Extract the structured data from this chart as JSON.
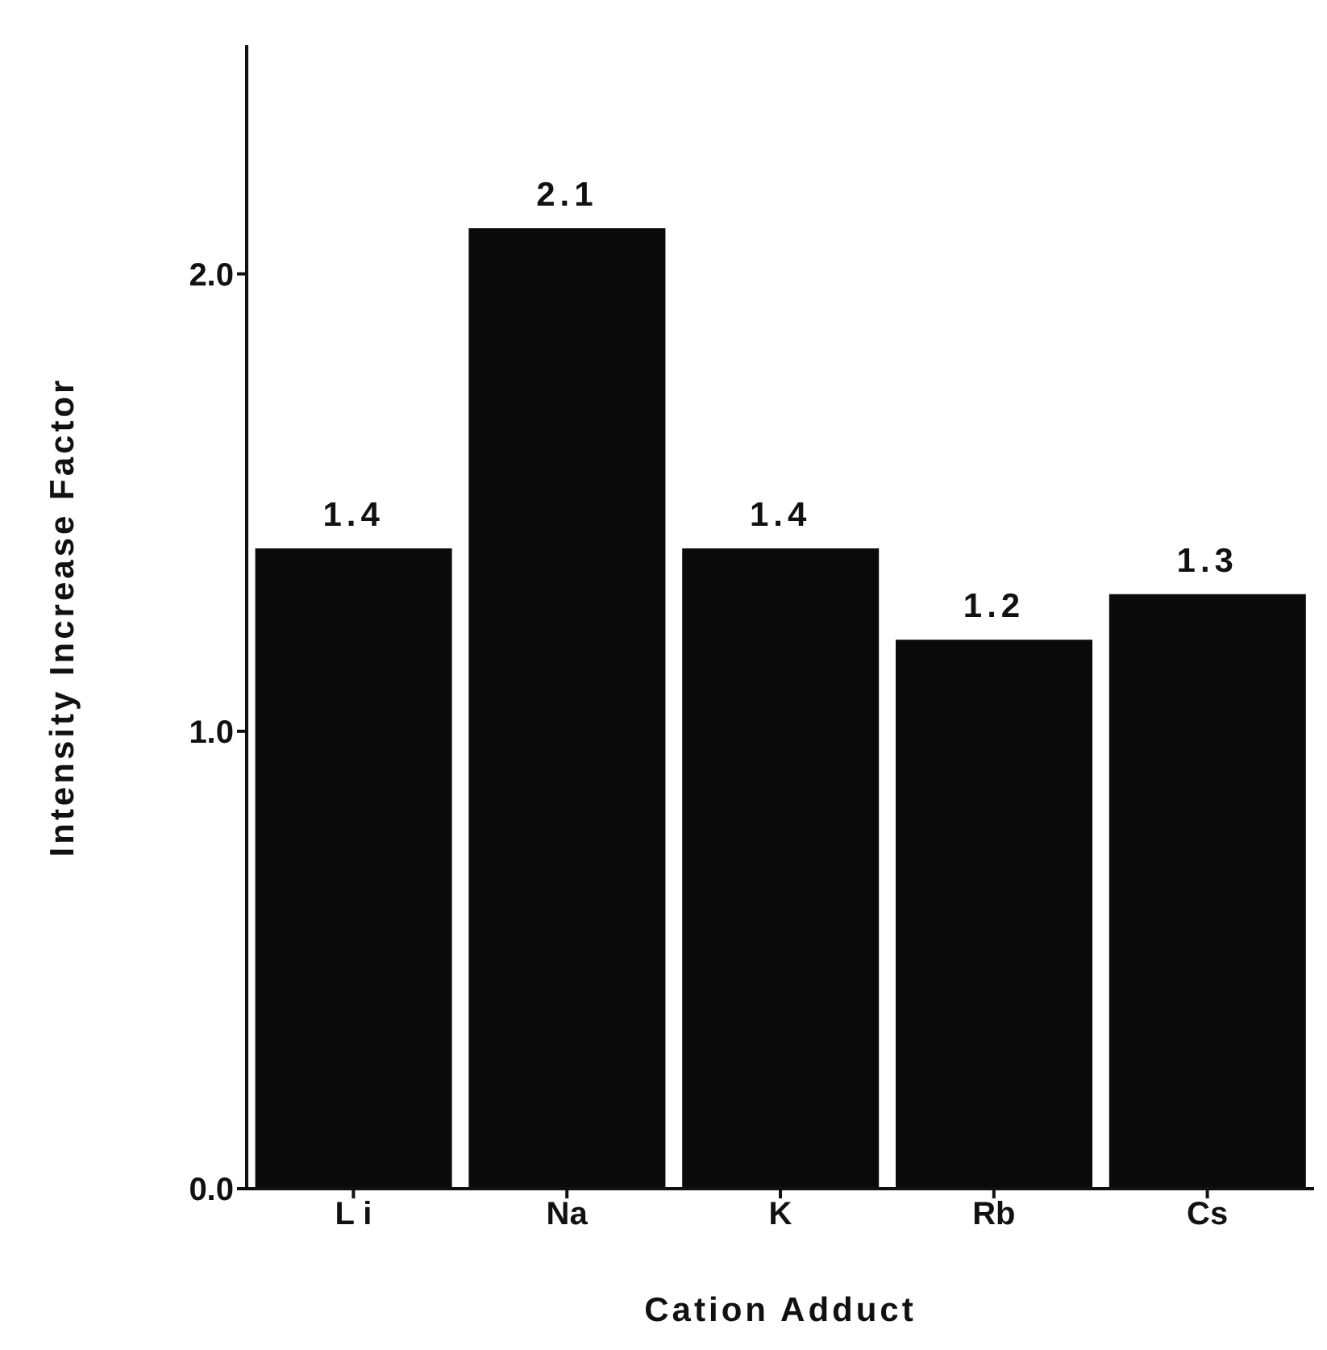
{
  "chart_data": {
    "type": "bar",
    "xlabel": "Cation   Adduct",
    "ylabel": "Intensity   Increase   Factor",
    "categories": [
      "L i",
      "Na",
      "K",
      "Rb",
      "Cs"
    ],
    "values": [
      1.4,
      2.1,
      1.4,
      1.2,
      1.3
    ],
    "color": "#0a0a0a",
    "ylim": [
      0,
      2.5
    ],
    "yticks": [
      {
        "value": 0,
        "label": "0.0"
      },
      {
        "value": 1,
        "label": "1.0"
      },
      {
        "value": 2,
        "label": "2.0"
      }
    ],
    "data_labels": true,
    "grid": false,
    "legend": false
  }
}
